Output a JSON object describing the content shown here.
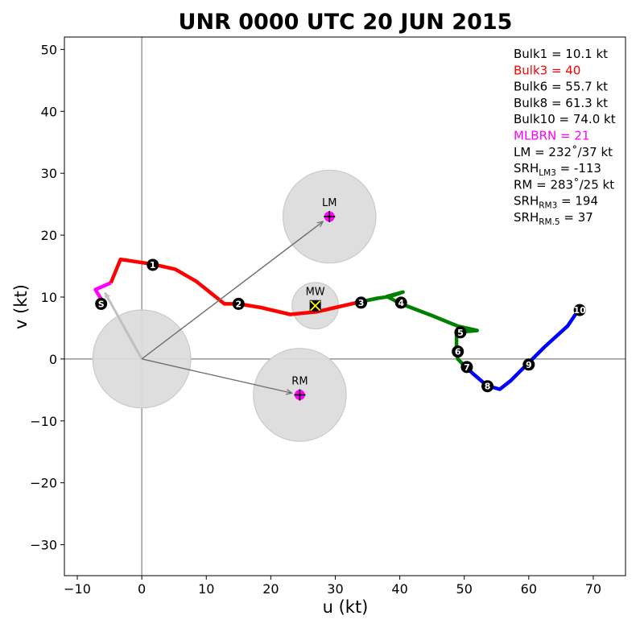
{
  "chart_data": {
    "type": "hodograph",
    "title": "UNR 0000 UTC 20 JUN 2015",
    "xlabel": "u (kt)",
    "ylabel": "v (kt)",
    "xlim": [
      -12,
      75
    ],
    "ylim": [
      -35,
      52
    ],
    "xticks": [
      -10,
      0,
      10,
      20,
      30,
      40,
      50,
      60,
      70
    ],
    "yticks": [
      -30,
      -20,
      -10,
      0,
      10,
      20,
      30,
      40,
      50
    ],
    "zero_lines": true,
    "colors": {
      "surface": "#ff00ff",
      "low": "#ff0000",
      "mid": "#008000",
      "high": "#0000ff",
      "circle_fill": "#dddddd",
      "circle_stroke": "#c8c8c8",
      "arrow": "#6e6e6e",
      "shear_arrow": "#c0c0c0",
      "text": "#000000",
      "bulk3": "#ff0000",
      "mlbrn": "#ff00ff"
    },
    "segments": [
      {
        "name": "surface",
        "color": "#ff00ff",
        "points": [
          [
            -6.2,
            9.5
          ],
          [
            -7.2,
            11.2
          ],
          [
            -4.8,
            12.3
          ]
        ]
      },
      {
        "name": "low",
        "color": "#ff0000",
        "points": [
          [
            -4.8,
            12.3
          ],
          [
            -3.3,
            16.1
          ],
          [
            1.7,
            15.3
          ],
          [
            5.2,
            14.5
          ],
          [
            8.5,
            12.5
          ],
          [
            12.8,
            8.9
          ],
          [
            15.0,
            8.9
          ],
          [
            18.5,
            8.3
          ],
          [
            23.0,
            7.2
          ],
          [
            27.0,
            7.6
          ],
          [
            30.0,
            8.3
          ],
          [
            33.8,
            9.2
          ]
        ]
      },
      {
        "name": "mid",
        "color": "#008000",
        "points": [
          [
            33.8,
            9.2
          ],
          [
            36.5,
            9.8
          ],
          [
            38.5,
            10.1
          ],
          [
            40.5,
            10.8
          ],
          [
            38.0,
            10.1
          ],
          [
            40.0,
            9.0
          ],
          [
            45.0,
            7.0
          ],
          [
            49.0,
            5.3
          ],
          [
            52.0,
            4.6
          ],
          [
            48.8,
            4.3
          ],
          [
            48.8,
            1.3
          ],
          [
            49.0,
            0.0
          ],
          [
            50.3,
            -1.4
          ]
        ]
      },
      {
        "name": "high",
        "color": "#0000ff",
        "points": [
          [
            50.3,
            -1.4
          ],
          [
            51.5,
            -2.5
          ],
          [
            53.5,
            -4.3
          ],
          [
            55.5,
            -4.9
          ],
          [
            57.2,
            -3.5
          ],
          [
            59.7,
            -0.9
          ],
          [
            62.5,
            2.0
          ],
          [
            66.0,
            5.3
          ],
          [
            67.7,
            7.9
          ]
        ]
      }
    ],
    "height_markers": [
      {
        "label": "S",
        "x": -6.3,
        "y": 8.9
      },
      {
        "label": "1",
        "x": 1.7,
        "y": 15.2
      },
      {
        "label": "2",
        "x": 15.0,
        "y": 8.9
      },
      {
        "label": "3",
        "x": 34.0,
        "y": 9.1
      },
      {
        "label": "4",
        "x": 40.2,
        "y": 9.1
      },
      {
        "label": "5",
        "x": 49.4,
        "y": 4.3
      },
      {
        "label": "6",
        "x": 49.0,
        "y": 1.2
      },
      {
        "label": "7",
        "x": 50.4,
        "y": -1.3
      },
      {
        "label": "8",
        "x": 53.6,
        "y": -4.4
      },
      {
        "label": "9",
        "x": 60.0,
        "y": -0.9
      },
      {
        "label": "10",
        "x": 67.9,
        "y": 7.9
      }
    ],
    "storm_motions": [
      {
        "label": "LM",
        "x": 29.1,
        "y": 23.0,
        "radius": 7.2,
        "marker": "plus",
        "arrow": true
      },
      {
        "label": "MW",
        "x": 26.9,
        "y": 8.6,
        "radius": 3.6,
        "marker": "cross",
        "arrow": false
      },
      {
        "label": "RM",
        "x": 24.5,
        "y": -5.8,
        "radius": 7.2,
        "marker": "plus",
        "arrow": true
      }
    ],
    "origin_circle_radius": 7.6,
    "shear_vector": {
      "from": [
        0,
        0
      ],
      "to": [
        -5.7,
        10.7
      ]
    },
    "stats": [
      {
        "text": "Bulk1 = 10.1 kt",
        "color": "#000000",
        "sub": "",
        "tail": ""
      },
      {
        "text": "Bulk3 = 40",
        "color": "#ff0000",
        "sub": "",
        "tail": ""
      },
      {
        "text": "Bulk6 = 55.7 kt",
        "color": "#000000",
        "sub": "",
        "tail": ""
      },
      {
        "text": "Bulk8 = 61.3 kt",
        "color": "#000000",
        "sub": "",
        "tail": ""
      },
      {
        "text": "Bulk10 = 74.0 kt",
        "color": "#000000",
        "sub": "",
        "tail": ""
      },
      {
        "text": "MLBRN = 21",
        "color": "#ff00ff",
        "sub": "",
        "tail": ""
      },
      {
        "text": "LM = 232˚/37 kt",
        "color": "#000000",
        "sub": "",
        "tail": ""
      },
      {
        "text": "SRH",
        "color": "#000000",
        "sub": "LM3",
        "tail": " = -113"
      },
      {
        "text": "RM = 283˚/25 kt",
        "color": "#000000",
        "sub": "",
        "tail": ""
      },
      {
        "text": "SRH",
        "color": "#000000",
        "sub": "RM3",
        "tail": " = 194"
      },
      {
        "text": "SRH",
        "color": "#000000",
        "sub": "RM.5",
        "tail": " = 37"
      }
    ]
  }
}
